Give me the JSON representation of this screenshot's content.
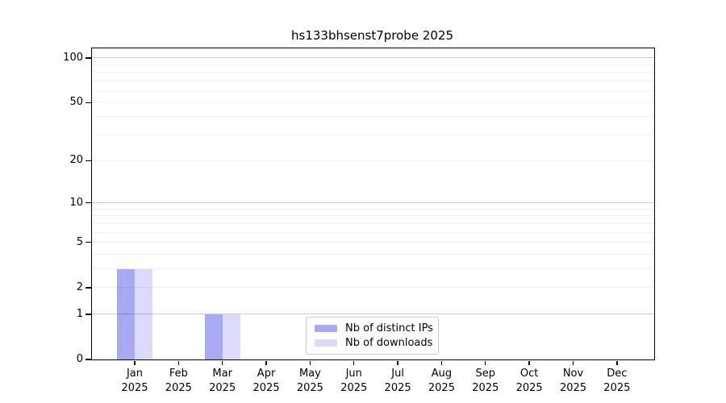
{
  "chart_data": {
    "type": "bar",
    "title": "hs133bhsenst7probe 2025",
    "year_label": "2025",
    "categories": [
      "Jan",
      "Feb",
      "Mar",
      "Apr",
      "May",
      "Jun",
      "Jul",
      "Aug",
      "Sep",
      "Oct",
      "Nov",
      "Dec"
    ],
    "series": [
      {
        "name": "Nb of distinct IPs",
        "color": "#a8a8f3",
        "values": [
          3,
          0,
          1,
          0,
          0,
          0,
          0,
          0,
          0,
          0,
          0,
          0
        ]
      },
      {
        "name": "Nb of downloads",
        "color": "#dbdbf9",
        "values": [
          3,
          0,
          1,
          0,
          0,
          0,
          0,
          0,
          0,
          0,
          0,
          0
        ]
      }
    ],
    "y_axis": {
      "scale": "log1p",
      "ylim": [
        0,
        116
      ],
      "ticks": [
        0,
        1,
        2,
        5,
        10,
        20,
        50,
        100
      ],
      "tick_labels": [
        "0",
        "1",
        "2",
        "5",
        "10",
        "20",
        "50",
        "100"
      ],
      "gridlines": [
        1,
        2,
        3,
        4,
        5,
        6,
        7,
        8,
        9,
        10,
        20,
        30,
        40,
        50,
        60,
        70,
        80,
        90,
        100
      ],
      "major_gridlines": [
        1,
        10,
        100
      ]
    },
    "x_axis": {
      "label_line1": "month",
      "label_line2": "year"
    },
    "legend": {
      "position": "inside-bottom-center"
    },
    "grid": true
  }
}
